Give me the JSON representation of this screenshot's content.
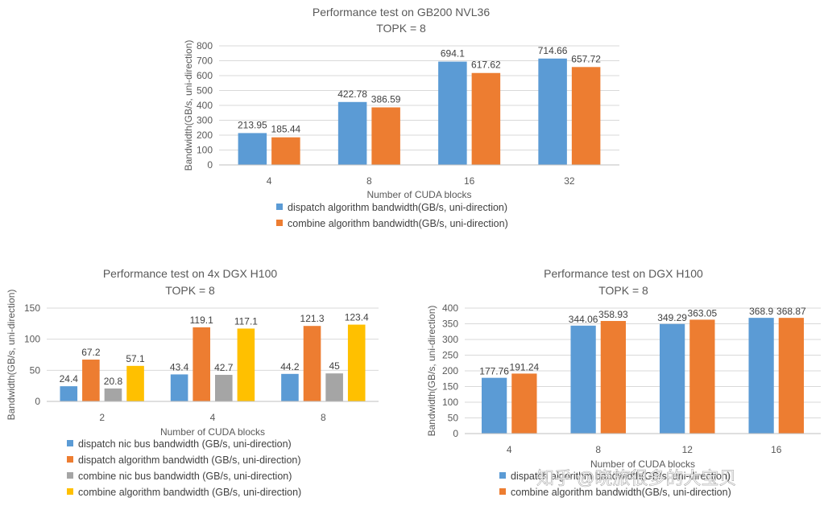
{
  "chart_data": [
    {
      "type": "bar",
      "title": "Performance test on GB200 NVL36",
      "subtitle": "TOPK = 8",
      "xlabel": "Number of CUDA blocks",
      "ylabel": "Bandwidth(GB/s, uni-direction)",
      "ylim": [
        0,
        800
      ],
      "yticks": [
        "0",
        "100",
        "200",
        "300",
        "400",
        "500",
        "600",
        "700",
        "800"
      ],
      "categories": [
        "4",
        "8",
        "16",
        "32"
      ],
      "series": [
        {
          "name": "dispatch algorithm  bandwidth(GB/s, uni-direction)",
          "color": "#5b9bd5",
          "values": [
            213.95,
            422.78,
            694.1,
            714.66
          ],
          "labels": [
            "213.95",
            "422.78",
            "694.1",
            "714.66"
          ]
        },
        {
          "name": "combine algorithm  bandwidth(GB/s, uni-direction)",
          "color": "#ed7d31",
          "values": [
            185.44,
            386.59,
            617.62,
            657.72
          ],
          "labels": [
            "185.44",
            "386.59",
            "617.62",
            "657.72"
          ]
        }
      ],
      "legend_position": "bottom"
    },
    {
      "type": "bar",
      "title": "Performance test on 4x DGX H100",
      "subtitle": "TOPK = 8",
      "xlabel": "Number of CUDA blocks",
      "ylabel": "Bandwidth(GB/s, uni-direction)",
      "ylim": [
        0,
        150
      ],
      "yticks": [
        "0",
        "50",
        "100",
        "150"
      ],
      "categories": [
        "2",
        "4",
        "8"
      ],
      "series": [
        {
          "name": "dispatch nic bus bandwidth (GB/s, uni-direction)",
          "color": "#5b9bd5",
          "values": [
            24.4,
            43.4,
            44.2
          ],
          "labels": [
            "24.4",
            "43.4",
            "44.2"
          ]
        },
        {
          "name": "dispatch algorithm bandwidth (GB/s, uni-direction)",
          "color": "#ed7d31",
          "values": [
            67.2,
            119.1,
            121.3
          ],
          "labels": [
            "67.2",
            "119.1",
            "121.3"
          ]
        },
        {
          "name": "combine nic bus bandwidth (GB/s, uni-direction)",
          "color": "#a5a5a5",
          "values": [
            20.8,
            42.7,
            45
          ],
          "labels": [
            "20.8",
            "42.7",
            "45"
          ]
        },
        {
          "name": "combine algorithm bandwidth (GB/s, uni-direction)",
          "color": "#ffc000",
          "values": [
            57.1,
            117.1,
            123.4
          ],
          "labels": [
            "57.1",
            "117.1",
            "123.4"
          ]
        }
      ],
      "legend_position": "bottom"
    },
    {
      "type": "bar",
      "title": "Performance test on DGX H100",
      "subtitle": "TOPK = 8",
      "xlabel": "Number of CUDA blocks",
      "ylabel": "Bandwidth(GB/s, uni-direction)",
      "ylim": [
        0,
        400
      ],
      "yticks": [
        "0",
        "50",
        "100",
        "150",
        "200",
        "250",
        "300",
        "350",
        "400"
      ],
      "categories": [
        "4",
        "8",
        "12",
        "16"
      ],
      "series": [
        {
          "name": "dispatch algorithm  bandwidth(GB/s, uni-direction)",
          "color": "#5b9bd5",
          "values": [
            177.76,
            344.06,
            349.29,
            368.9
          ],
          "labels": [
            "177.76",
            "344.06",
            "349.29",
            "368.9"
          ]
        },
        {
          "name": "combine algorithm  bandwidth(GB/s, uni-direction)",
          "color": "#ed7d31",
          "values": [
            191.24,
            358.93,
            363.05,
            368.87
          ],
          "labels": [
            "191.24",
            "358.93",
            "363.05",
            "368.87"
          ]
        }
      ],
      "legend_position": "bottom"
    }
  ],
  "watermark": "知乎 @晓旅很多的大宝贝"
}
